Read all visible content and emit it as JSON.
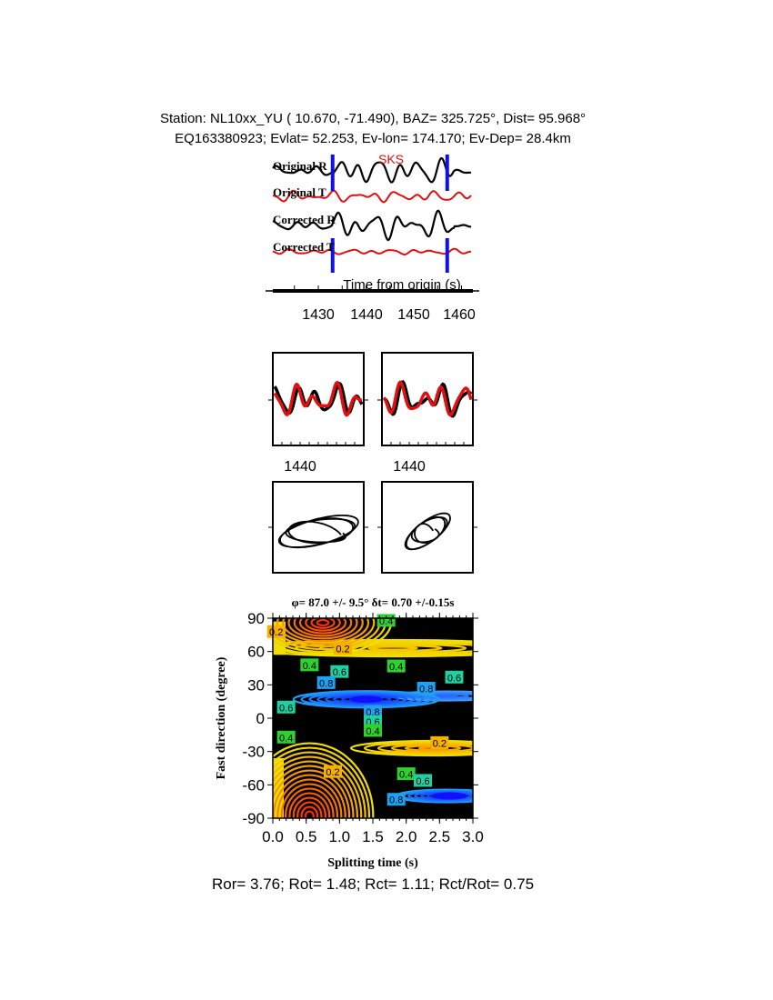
{
  "header": {
    "line1": "Station: NL10xx_YU (  10.670,  -71.490), BAZ=  325.725°, Dist=   95.968°",
    "line2": "EQ163380923; Evlat=  52.253, Ev-lon= 174.170; Ev-Dep= 28.4km"
  },
  "colors": {
    "radial": "#000000",
    "transverse": "#e01010",
    "window": "#1010e0",
    "phase": "#e01010"
  },
  "chart_data": [
    {
      "type": "line",
      "phase_label": "SKS",
      "traces": [
        "Original R",
        "Original T",
        "Corrected R",
        "Corrected T"
      ],
      "xlabel": "Time from origin (s)",
      "xticks": [
        "1430",
        "1440",
        "1450",
        "1460"
      ],
      "xlim": [
        1420.5,
        1462
      ],
      "window": [
        1433,
        1457
      ]
    },
    {
      "type": "line",
      "panels": [
        "original",
        "corrected"
      ],
      "xticks": [
        "1440",
        "1440"
      ]
    },
    {
      "type": "scatter",
      "panels": [
        "original particle motion",
        "corrected particle motion"
      ]
    },
    {
      "type": "heatmap",
      "title": "φ= 87.0 +/- 9.5° δt= 0.70 +/-0.15s",
      "xlabel": "Splitting time (s)",
      "ylabel": "Fast direction (degree)",
      "xlim": [
        0,
        3
      ],
      "ylim": [
        -90,
        90
      ],
      "xticks": [
        "0.0",
        "0.5",
        "1.0",
        "1.5",
        "2.0",
        "2.5",
        "3.0"
      ],
      "yticks": [
        "90",
        "60",
        "30",
        "0",
        "-30",
        "-60",
        "-90"
      ],
      "contour_labels": [
        {
          "t": 0.05,
          "phi": 78,
          "label": "0.2"
        },
        {
          "t": 1.7,
          "phi": 88,
          "label": "0.4"
        },
        {
          "t": 1.05,
          "phi": 63,
          "label": "0.2"
        },
        {
          "t": 0.55,
          "phi": 48,
          "label": "0.4"
        },
        {
          "t": 1.0,
          "phi": 42,
          "label": "0.6"
        },
        {
          "t": 1.85,
          "phi": 47,
          "label": "0.4"
        },
        {
          "t": 2.72,
          "phi": 37,
          "label": "0.6"
        },
        {
          "t": 0.8,
          "phi": 32,
          "label": "0.8"
        },
        {
          "t": 2.3,
          "phi": 27,
          "label": "0.8"
        },
        {
          "t": 0.2,
          "phi": 10,
          "label": "0.6"
        },
        {
          "t": 1.5,
          "phi": 6,
          "label": "0.8"
        },
        {
          "t": 1.5,
          "phi": -3,
          "label": "0.6"
        },
        {
          "t": 1.5,
          "phi": -11,
          "label": "0.4"
        },
        {
          "t": 0.2,
          "phi": -17,
          "label": "0.4"
        },
        {
          "t": 2.5,
          "phi": -22,
          "label": "0.2"
        },
        {
          "t": 0.9,
          "phi": -48,
          "label": "0.2"
        },
        {
          "t": 2.0,
          "phi": -50,
          "label": "0.4"
        },
        {
          "t": 2.25,
          "phi": -56,
          "label": "0.6"
        },
        {
          "t": 1.85,
          "phi": -73,
          "label": "0.8"
        }
      ],
      "label_colors": {
        "0.2": "#f5b000",
        "0.4": "#30d030",
        "0.6": "#20d0a0",
        "0.8": "#20a0f0"
      }
    }
  ],
  "footer": "Ror= 3.76; Rot= 1.48; Rct= 1.11; Rct/Rot= 0.75"
}
